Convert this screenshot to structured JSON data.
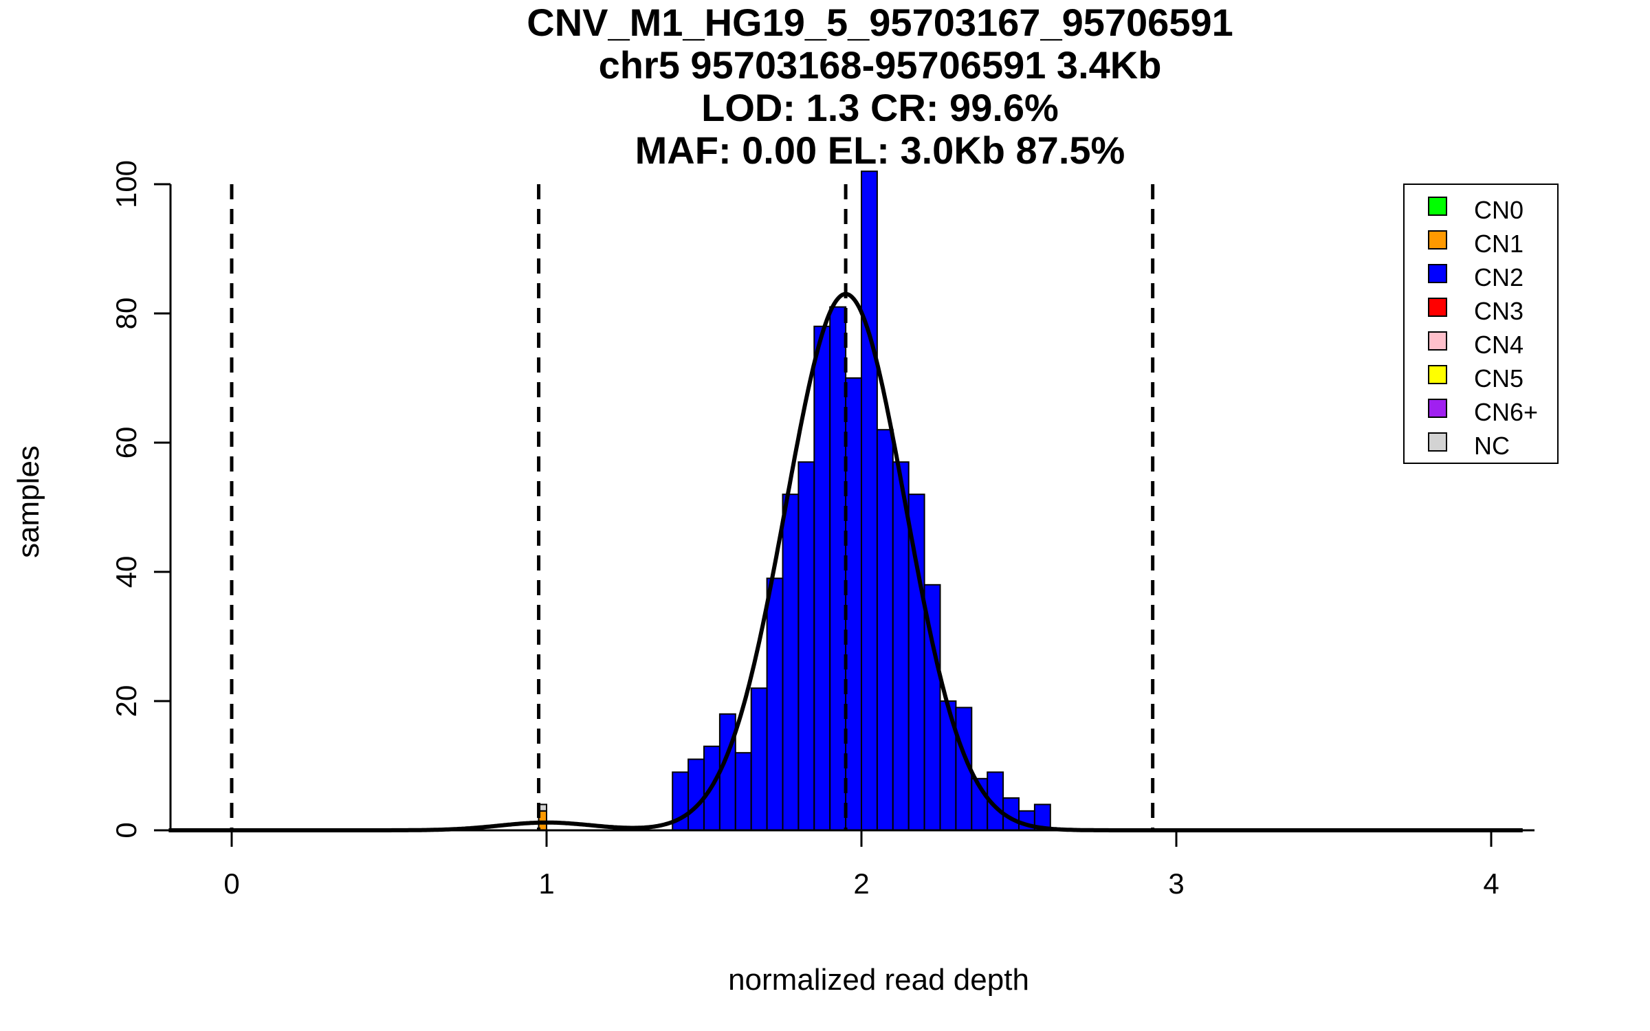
{
  "chart_data": {
    "type": "bar",
    "title_lines": [
      "CNV_M1_HG19_5_95703167_95706591",
      "chr5 95703168-95706591 3.4Kb",
      "LOD: 1.3 CR: 99.6%",
      "MAF: 0.00 EL: 3.0Kb 87.5%"
    ],
    "xlabel": "normalized read depth",
    "ylabel": "samples",
    "xlim": [
      -0.2,
      4.1
    ],
    "ylim": [
      0,
      100
    ],
    "x_ticks": [
      0,
      1,
      2,
      3,
      4
    ],
    "y_ticks": [
      0,
      20,
      40,
      60,
      80,
      100
    ],
    "bin_width": 0.05,
    "dashed_lines_x": [
      0,
      0.975,
      1.95,
      2.925
    ],
    "histogram": {
      "CN2": [
        {
          "x0": 1.4,
          "count": 9
        },
        {
          "x0": 1.45,
          "count": 11
        },
        {
          "x0": 1.5,
          "count": 13
        },
        {
          "x0": 1.55,
          "count": 18
        },
        {
          "x0": 1.6,
          "count": 12
        },
        {
          "x0": 1.65,
          "count": 22
        },
        {
          "x0": 1.7,
          "count": 39
        },
        {
          "x0": 1.75,
          "count": 52
        },
        {
          "x0": 1.8,
          "count": 57
        },
        {
          "x0": 1.85,
          "count": 78
        },
        {
          "x0": 1.9,
          "count": 81
        },
        {
          "x0": 1.95,
          "count": 70
        },
        {
          "x0": 2.0,
          "count": 102
        },
        {
          "x0": 2.05,
          "count": 62
        },
        {
          "x0": 2.1,
          "count": 57
        },
        {
          "x0": 2.15,
          "count": 52
        },
        {
          "x0": 2.2,
          "count": 38
        },
        {
          "x0": 2.25,
          "count": 20
        },
        {
          "x0": 2.3,
          "count": 19
        },
        {
          "x0": 2.35,
          "count": 8
        },
        {
          "x0": 2.4,
          "count": 9
        },
        {
          "x0": 2.45,
          "count": 5
        },
        {
          "x0": 2.5,
          "count": 3
        },
        {
          "x0": 2.55,
          "count": 4
        }
      ],
      "CN1": [
        {
          "x0": 0.975,
          "count": 3
        }
      ],
      "NC": [
        {
          "x0": 0.975,
          "count": 1
        }
      ]
    },
    "fit_curve": {
      "description": "fitted mixture density",
      "components": [
        {
          "mean": 1.95,
          "sd": 0.19,
          "peak": 83
        },
        {
          "mean": 1.0,
          "sd": 0.15,
          "peak": 1.2
        }
      ]
    },
    "legend": [
      {
        "label": "CN0",
        "color": "#00ff00"
      },
      {
        "label": "CN1",
        "color": "#ff9900"
      },
      {
        "label": "CN2",
        "color": "#0000ff"
      },
      {
        "label": "CN3",
        "color": "#ff0000"
      },
      {
        "label": "CN4",
        "color": "#ffc0cb"
      },
      {
        "label": "CN5",
        "color": "#ffff00"
      },
      {
        "label": "CN6+",
        "color": "#a020f0"
      },
      {
        "label": "NC",
        "color": "#d3d3d3"
      }
    ],
    "legend_position": "top-right",
    "colors": {
      "CN1": "#ff9900",
      "CN2": "#0000ff",
      "NC": "#d3d3d3"
    }
  }
}
